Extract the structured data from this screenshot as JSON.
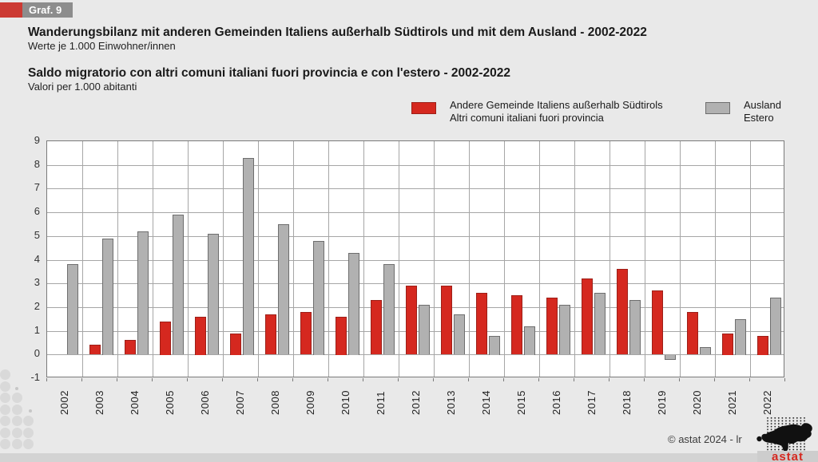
{
  "header": {
    "badge": "Graf. 9",
    "title_de": "Wanderungsbilanz mit anderen Gemeinden Italiens außerhalb Südtirols und mit dem Ausland - 2002-2022",
    "subtitle_de": "Werte je 1.000 Einwohner/innen",
    "title_it": "Saldo migratorio con altri comuni italiani fuori provincia e con l'estero - 2002-2022",
    "subtitle_it": "Valori per 1.000 abitanti"
  },
  "legend": {
    "series_red": {
      "line1": "Andere Gemeinde Italiens außerhalb Südtirols",
      "line2": "Altri comuni italiani fuori provincia",
      "color": "#d5281f"
    },
    "series_gray": {
      "line1": "Ausland",
      "line2": "Estero",
      "color": "#b1b1b1"
    }
  },
  "chart_data": {
    "type": "bar",
    "title": "Wanderungsbilanz / Saldo migratorio - 2002-2022 (je 1.000 Einwohner / per 1.000 abitanti)",
    "categories": [
      "2002",
      "2003",
      "2004",
      "2005",
      "2006",
      "2007",
      "2008",
      "2009",
      "2010",
      "2011",
      "2012",
      "2013",
      "2014",
      "2015",
      "2016",
      "2017",
      "2018",
      "2019",
      "2020",
      "2021",
      "2022"
    ],
    "series": [
      {
        "name": "Andere Gemeinde Italiens außerhalb Südtirols / Altri comuni italiani fuori provincia",
        "color": "#d5281f",
        "values": [
          0,
          0.4,
          0.6,
          1.4,
          1.6,
          0.9,
          1.7,
          1.8,
          1.6,
          2.3,
          2.9,
          2.9,
          2.6,
          2.5,
          2.4,
          3.2,
          3.6,
          2.7,
          1.8,
          0.9,
          0.8
        ]
      },
      {
        "name": "Ausland / Estero",
        "color": "#b1b1b1",
        "values": [
          3.8,
          4.9,
          5.2,
          5.9,
          5.1,
          8.3,
          5.5,
          4.8,
          4.3,
          3.8,
          2.1,
          1.7,
          0.8,
          1.2,
          2.1,
          2.6,
          2.3,
          -0.2,
          0.3,
          1.5,
          2.4
        ]
      }
    ],
    "xlabel": "",
    "ylabel": "",
    "ylim": [
      -1,
      9
    ],
    "ytick_step": 1,
    "grid": true,
    "legend_position": "top-right"
  },
  "footer": {
    "copyright": "© astat 2024 - lr",
    "logo_text": "astat"
  }
}
